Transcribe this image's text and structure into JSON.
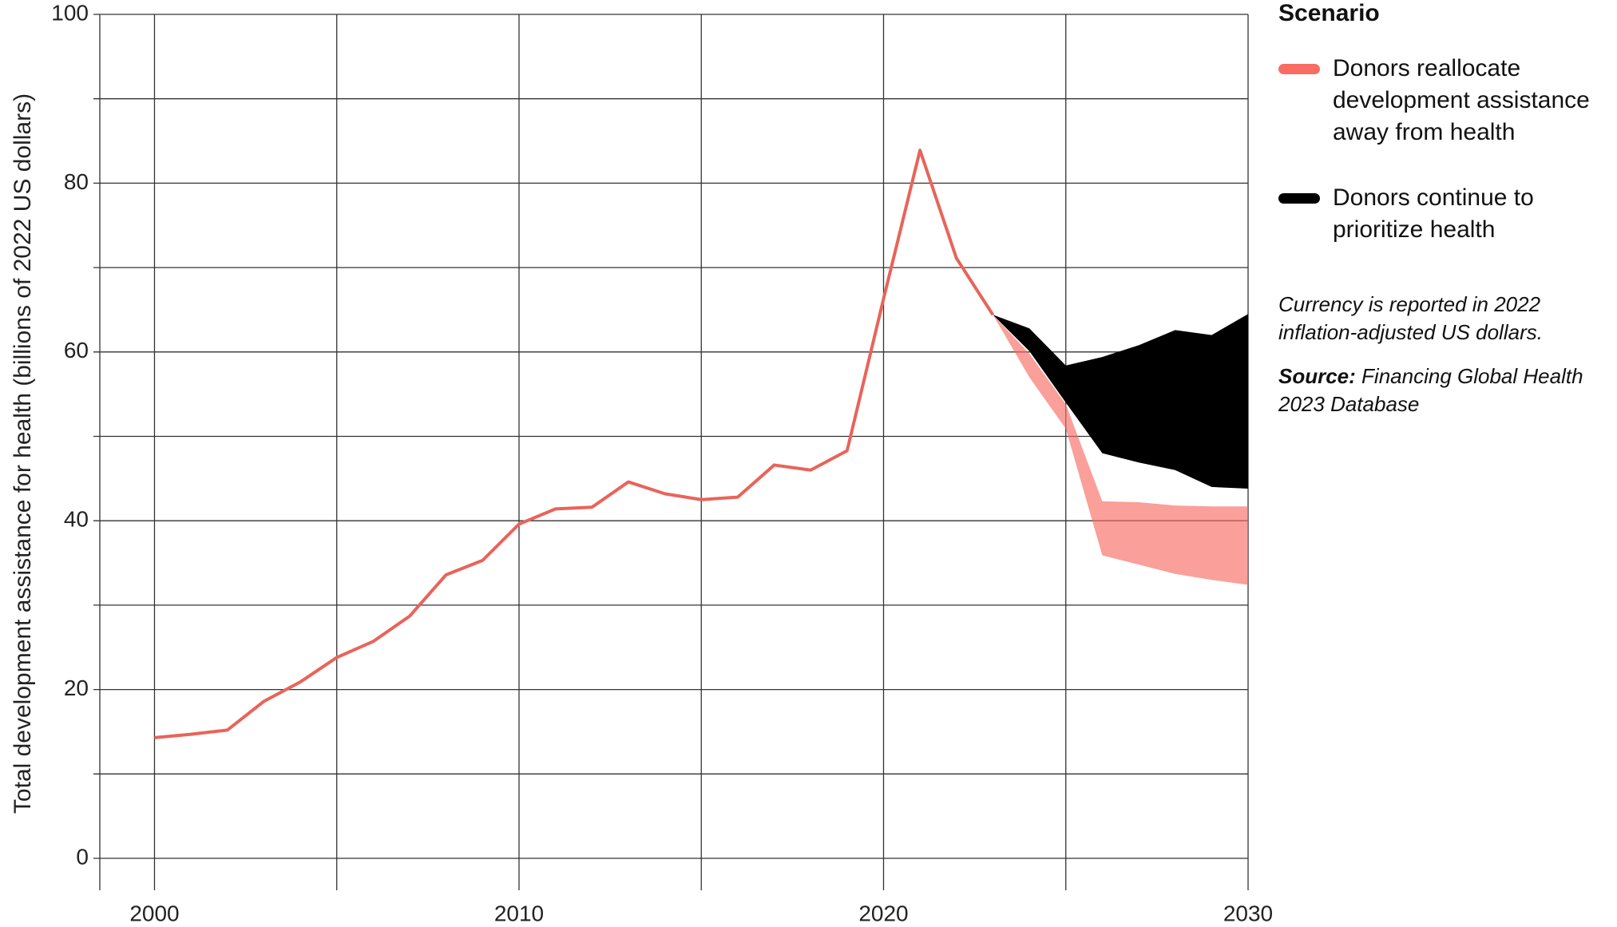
{
  "chart_data": {
    "type": "band",
    "y_label": "Total development assistance for health (billions of 2022 US dollars)",
    "xlim": [
      1998.5,
      2030
    ],
    "xticks": [
      2000,
      2010,
      2020,
      2030
    ],
    "xgrid_minor": [
      2005,
      2015,
      2025
    ],
    "ylim": [
      0,
      100
    ],
    "yticks": [
      0,
      20,
      40,
      60,
      80,
      100
    ],
    "ygrid_minor": [
      10,
      30,
      50,
      70,
      90
    ],
    "grid": true,
    "history": {
      "color": "#e8645a",
      "x": [
        2000,
        2001,
        2002,
        2003,
        2004,
        2005,
        2006,
        2007,
        2008,
        2009,
        2010,
        2011,
        2012,
        2013,
        2014,
        2015,
        2016,
        2017,
        2018,
        2019,
        2020,
        2021,
        2022,
        2023
      ],
      "values": [
        14.3,
        14.7,
        15.2,
        18.6,
        20.9,
        23.8,
        25.7,
        28.7,
        33.6,
        35.3,
        39.6,
        41.4,
        41.6,
        44.6,
        43.2,
        42.5,
        42.8,
        46.6,
        46.0,
        48.3,
        66.3,
        83.9,
        71.1,
        64.4
      ]
    },
    "legend_title": "Scenario",
    "series": [
      {
        "name": "Donors continue to prioritize health",
        "color": "#000000",
        "x": [
          2023,
          2024,
          2025,
          2026,
          2027,
          2028,
          2029,
          2030
        ],
        "upper": [
          64.4,
          62.8,
          58.4,
          59.4,
          60.8,
          62.6,
          62.0,
          64.5
        ],
        "lower": [
          64.4,
          60.1,
          54.0,
          48.0,
          46.9,
          46.0,
          44.0,
          43.8
        ]
      },
      {
        "name": "Donors reallocate development assistance away from health",
        "color": "#f86c62",
        "x": [
          2023,
          2024,
          2025,
          2026,
          2027,
          2028,
          2029,
          2030
        ],
        "upper": [
          64.4,
          59.8,
          53.8,
          42.3,
          42.2,
          41.8,
          41.7,
          41.7
        ],
        "lower": [
          64.4,
          57.0,
          50.9,
          35.9,
          34.8,
          33.7,
          33.0,
          32.4
        ]
      }
    ],
    "legend_order": [
      1,
      0
    ],
    "note": "Currency is reported in 2022 inflation-adjusted US dollars.",
    "source_label": "Source:",
    "source": "Financing Global Health 2023 Database"
  }
}
